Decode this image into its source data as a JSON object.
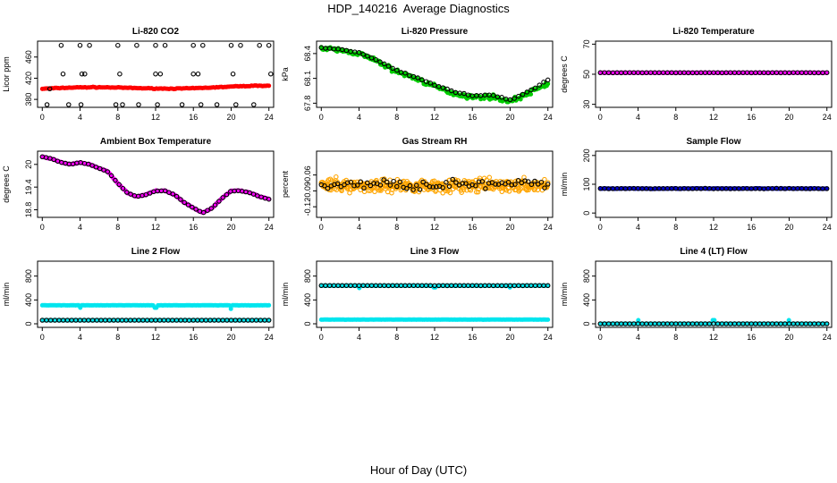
{
  "figure": {
    "title": "HDP_140216  Average Diagnostics",
    "xlabel": "Hour of Day (UTC)"
  },
  "chart_data": [
    {
      "type": "scatter",
      "title": "Li-820 CO2",
      "ylabel": "Licor ppm",
      "xlim": [
        -0.5,
        24.5
      ],
      "ylim": [
        365,
        490
      ],
      "xticks": [
        0,
        4,
        8,
        12,
        16,
        20,
        24
      ],
      "yticks": [
        380,
        420,
        460
      ],
      "series": [
        {
          "color": "#ff0000",
          "filled": true,
          "pattern": "flat",
          "value": 400,
          "amp": 2,
          "noise": 1,
          "count": 144,
          "end": 404
        },
        {
          "color": "#000000",
          "filled": false,
          "x": [
            2,
            4,
            5,
            8,
            10,
            12,
            13,
            16,
            17,
            20,
            21,
            23,
            24,
            0.8,
            2.2,
            4.2,
            4.5,
            8.2,
            12,
            12.5,
            16,
            16.5,
            20.2,
            24.2,
            0.5,
            2.8,
            4.1,
            7.8,
            8.5,
            10.2,
            12.2,
            14.8,
            16.8,
            18.5,
            20.5,
            22.4
          ],
          "y": [
            482,
            482,
            482,
            482,
            482,
            482,
            482,
            482,
            482,
            482,
            482,
            482,
            482,
            400,
            428,
            428,
            428,
            428,
            428,
            428,
            428,
            428,
            428,
            428,
            370,
            370,
            370,
            370,
            370,
            370,
            370,
            370,
            370,
            370,
            370,
            370
          ]
        }
      ]
    },
    {
      "type": "scatter",
      "title": "Li-820 Pressure",
      "ylabel": "kPa",
      "xlim": [
        -0.5,
        24.5
      ],
      "ylim": [
        67.75,
        68.55
      ],
      "xticks": [
        0,
        4,
        8,
        12,
        16,
        20,
        24
      ],
      "yticks": [
        67.8,
        68.1,
        68.4
      ],
      "series": [
        {
          "color": "#00cc00",
          "filled": true,
          "pattern": "curve",
          "x": [
            0,
            2,
            4,
            6,
            8,
            10,
            12,
            14,
            16,
            18,
            20,
            22,
            24
          ],
          "y": [
            68.46,
            68.44,
            68.4,
            68.3,
            68.18,
            68.1,
            68.0,
            67.92,
            67.87,
            67.88,
            67.82,
            67.92,
            68.04
          ],
          "count": 200,
          "noise": 0.04
        },
        {
          "color": "#000000",
          "filled": false,
          "pattern": "curve",
          "x": [
            0,
            2,
            4,
            6,
            8,
            10,
            12,
            14,
            16,
            18,
            20,
            22,
            24
          ],
          "y": [
            68.47,
            68.45,
            68.41,
            68.31,
            68.2,
            68.11,
            68.02,
            67.94,
            67.89,
            67.9,
            67.84,
            67.94,
            68.08
          ],
          "count": 55,
          "noise": 0.01
        }
      ]
    },
    {
      "type": "scatter",
      "title": "Li-820 Temperature",
      "ylabel": "degrees C",
      "xlim": [
        -0.5,
        24.5
      ],
      "ylim": [
        28,
        72
      ],
      "xticks": [
        0,
        4,
        8,
        12,
        16,
        20,
        24
      ],
      "yticks": [
        30,
        50,
        70
      ],
      "series": [
        {
          "color": "#ff00ff",
          "filled": true,
          "pattern": "flat",
          "value": 51,
          "amp": 0,
          "noise": 0.1,
          "count": 144
        },
        {
          "color": "#000000",
          "filled": false,
          "pattern": "flat",
          "value": 51,
          "amp": 0,
          "noise": 0.1,
          "count": 55
        }
      ]
    },
    {
      "type": "scatter",
      "title": "Ambient Box Temperature",
      "ylabel": "degrees C",
      "xlim": [
        -0.5,
        24.5
      ],
      "ylim": [
        18.6,
        20.35
      ],
      "xticks": [
        0,
        4,
        8,
        12,
        16,
        20,
        24
      ],
      "yticks": [
        18.8,
        19.4,
        20.0
      ],
      "series": [
        {
          "color": "#ff00ff",
          "filled": true,
          "pattern": "curve",
          "x": [
            0,
            1,
            2,
            3,
            4,
            5,
            6,
            7,
            8,
            9,
            10,
            11,
            12,
            13,
            14,
            15,
            16,
            17,
            18,
            19,
            20,
            21,
            22,
            23,
            24
          ],
          "y": [
            20.2,
            20.15,
            20.05,
            20.0,
            20.05,
            20.0,
            19.9,
            19.8,
            19.5,
            19.25,
            19.15,
            19.2,
            19.3,
            19.3,
            19.2,
            19.0,
            18.85,
            18.72,
            18.85,
            19.1,
            19.3,
            19.3,
            19.25,
            19.15,
            19.08
          ],
          "count": 200,
          "noise": 0.015
        },
        {
          "color": "#000000",
          "filled": false,
          "pattern": "curve",
          "x": [
            0,
            1,
            2,
            3,
            4,
            5,
            6,
            7,
            8,
            9,
            10,
            11,
            12,
            13,
            14,
            15,
            16,
            17,
            18,
            19,
            20,
            21,
            22,
            23,
            24
          ],
          "y": [
            20.2,
            20.15,
            20.05,
            20.0,
            20.05,
            20.0,
            19.9,
            19.8,
            19.5,
            19.25,
            19.15,
            19.2,
            19.3,
            19.3,
            19.2,
            19.0,
            18.85,
            18.72,
            18.85,
            19.1,
            19.3,
            19.3,
            19.25,
            19.15,
            19.08
          ],
          "count": 60,
          "noise": 0.005
        }
      ]
    },
    {
      "type": "scatter",
      "title": "Gas Stream RH",
      "ylabel": "percent",
      "xlim": [
        -0.5,
        24.5
      ],
      "ylim": [
        -0.14,
        -0.015
      ],
      "xticks": [
        0,
        4,
        8,
        12,
        16,
        20,
        24
      ],
      "yticks": [
        -0.12,
        -0.09,
        -0.06
      ],
      "series": [
        {
          "color": "#ffa500",
          "filled": false,
          "pattern": "flat",
          "value": -0.08,
          "amp": 0,
          "noise": 0.018,
          "count": 400
        },
        {
          "color": "#000000",
          "filled": false,
          "pattern": "flat",
          "value": -0.078,
          "amp": 0,
          "noise": 0.014,
          "count": 70
        }
      ]
    },
    {
      "type": "scatter",
      "title": "Sample Flow",
      "ylabel": "ml/min",
      "xlim": [
        -0.5,
        24.5
      ],
      "ylim": [
        -15,
        215
      ],
      "xticks": [
        0,
        4,
        8,
        12,
        16,
        20,
        24
      ],
      "yticks": [
        0,
        100,
        200
      ],
      "series": [
        {
          "color": "#0000cc",
          "filled": true,
          "pattern": "flat",
          "value": 85,
          "amp": 0,
          "noise": 1.5,
          "count": 144
        },
        {
          "color": "#000000",
          "filled": false,
          "pattern": "flat",
          "value": 85,
          "amp": 0,
          "noise": 1,
          "count": 55
        }
      ]
    },
    {
      "type": "scatter",
      "title": "Line 2 Flow",
      "ylabel": "ml/min",
      "xlim": [
        -0.5,
        24.5
      ],
      "ylim": [
        -60,
        1050
      ],
      "xticks": [
        0,
        4,
        8,
        12,
        16,
        20,
        24
      ],
      "yticks": [
        0,
        400,
        800
      ],
      "series": [
        {
          "color": "#00e5ee",
          "filled": true,
          "pattern": "flat",
          "value": 310,
          "amp": 0,
          "noise": 3,
          "count": 144,
          "dips": [
            [
              4,
              270
            ],
            [
              12,
              270
            ],
            [
              20,
              250
            ]
          ]
        },
        {
          "color": "#00e5ee",
          "filled": true,
          "pattern": "flat",
          "value": 60,
          "amp": 0,
          "noise": 2,
          "count": 144
        },
        {
          "color": "#000000",
          "filled": false,
          "pattern": "flat",
          "value": 60,
          "amp": 0,
          "noise": 1,
          "count": 55
        }
      ]
    },
    {
      "type": "scatter",
      "title": "Line 3 Flow",
      "ylabel": "ml/min",
      "xlim": [
        -0.5,
        24.5
      ],
      "ylim": [
        -60,
        1050
      ],
      "xticks": [
        0,
        4,
        8,
        12,
        16,
        20,
        24
      ],
      "yticks": [
        0,
        400,
        800
      ],
      "series": [
        {
          "color": "#00e5ee",
          "filled": true,
          "pattern": "flat",
          "value": 70,
          "amp": 0,
          "noise": 3,
          "count": 144
        },
        {
          "color": "#00e5ee",
          "filled": true,
          "pattern": "flat",
          "value": 640,
          "amp": 0,
          "noise": 3,
          "count": 144,
          "dips": [
            [
              4,
              600
            ],
            [
              12,
              610
            ],
            [
              20,
              610
            ]
          ]
        },
        {
          "color": "#000000",
          "filled": false,
          "pattern": "flat",
          "value": 640,
          "amp": 0,
          "noise": 1,
          "count": 55
        }
      ]
    },
    {
      "type": "scatter",
      "title": "Line 4 (LT) Flow",
      "ylabel": "ml/min",
      "xlim": [
        -0.5,
        24.5
      ],
      "ylim": [
        -60,
        1050
      ],
      "xticks": [
        0,
        4,
        8,
        12,
        16,
        20,
        24
      ],
      "yticks": [
        0,
        400,
        800
      ],
      "series": [
        {
          "color": "#00e5ee",
          "filled": true,
          "pattern": "flat",
          "value": 0,
          "amp": 0,
          "noise": 1,
          "count": 144,
          "spikes": [
            [
              4,
              60
            ],
            [
              12,
              60
            ],
            [
              20,
              60
            ]
          ]
        },
        {
          "color": "#000000",
          "filled": false,
          "pattern": "flat",
          "value": 0,
          "amp": 0,
          "noise": 0.5,
          "count": 55
        }
      ]
    }
  ]
}
